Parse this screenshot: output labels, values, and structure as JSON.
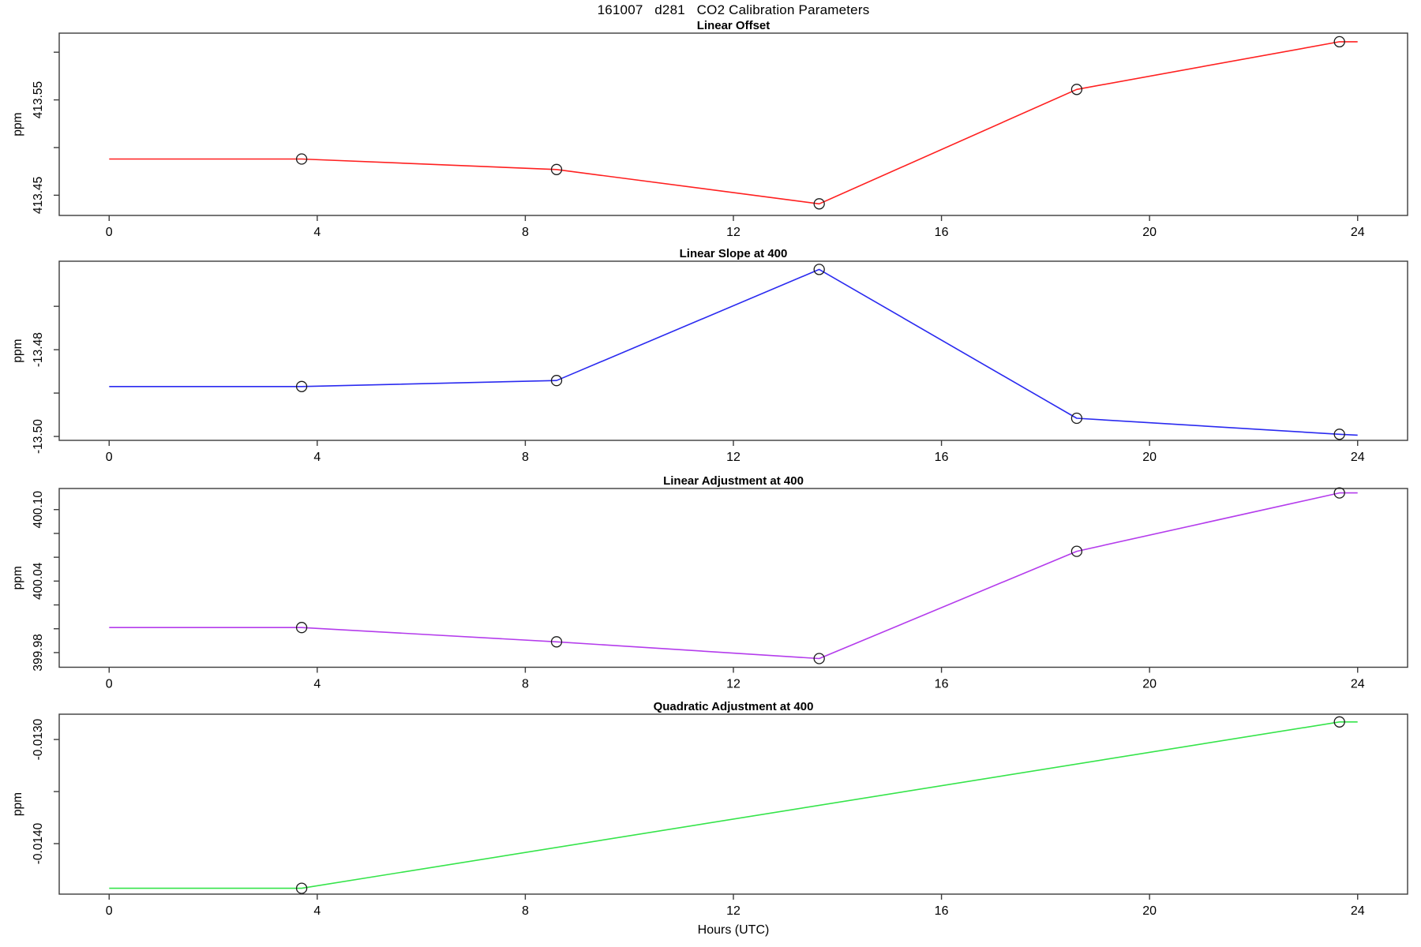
{
  "main_title": "161007   d281   CO2 Calibration Parameters",
  "x_axis": {
    "label": "Hours (UTC)",
    "ticks": [
      0,
      4,
      8,
      12,
      16,
      20,
      24
    ],
    "xlim": [
      -0.96,
      24.96
    ]
  },
  "chart_data": [
    {
      "type": "line",
      "title": "Linear Offset",
      "ylabel": "ppm",
      "color": "#ff2020",
      "ylim": [
        413.4288,
        413.62
      ],
      "yticks": [
        {
          "v": 413.45,
          "label": "413.45"
        },
        {
          "v": 413.5,
          "label": null
        },
        {
          "v": 413.55,
          "label": "413.55"
        },
        {
          "v": 413.6,
          "label": null
        }
      ],
      "x": [
        0,
        3.7,
        8.6,
        13.65,
        18.6,
        23.65,
        24
      ],
      "y": [
        413.488,
        413.488,
        413.477,
        413.441,
        413.561,
        413.611,
        413.611
      ],
      "marker_x": [
        3.7,
        8.6,
        13.65,
        18.6,
        23.65
      ],
      "marker_y": [
        413.488,
        413.477,
        413.441,
        413.561,
        413.611
      ]
    },
    {
      "type": "line",
      "title": "Linear Slope at 400",
      "ylabel": "ppm",
      "color": "#2a2af0",
      "ylim": [
        -13.5009,
        -13.4596
      ],
      "yticks": [
        {
          "v": -13.5,
          "label": "-13.50"
        },
        {
          "v": -13.49,
          "label": null
        },
        {
          "v": -13.48,
          "label": "-13.48"
        },
        {
          "v": -13.47,
          "label": null
        }
      ],
      "x": [
        0,
        3.7,
        8.6,
        13.65,
        18.6,
        23.65,
        24
      ],
      "y": [
        -13.4885,
        -13.4885,
        -13.4871,
        -13.4615,
        -13.4958,
        -13.4995,
        -13.4997
      ],
      "marker_x": [
        3.7,
        8.6,
        13.65,
        18.6,
        23.65
      ],
      "marker_y": [
        -13.4885,
        -13.4871,
        -13.4615,
        -13.4958,
        -13.4995
      ]
    },
    {
      "type": "line",
      "title": "Linear Adjustment at 400",
      "ylabel": "ppm",
      "color": "#b43cec",
      "ylim": [
        399.9677,
        400.1177
      ],
      "yticks": [
        {
          "v": 399.98,
          "label": "399.98"
        },
        {
          "v": 400.0,
          "label": null
        },
        {
          "v": 400.02,
          "label": null
        },
        {
          "v": 400.04,
          "label": "400.04"
        },
        {
          "v": 400.06,
          "label": null
        },
        {
          "v": 400.08,
          "label": null
        },
        {
          "v": 400.1,
          "label": "400.10"
        }
      ],
      "x": [
        0,
        3.7,
        8.6,
        13.65,
        18.6,
        23.65,
        24
      ],
      "y": [
        400.001,
        400.001,
        399.989,
        399.975,
        400.065,
        400.114,
        400.114
      ],
      "marker_x": [
        3.7,
        8.6,
        13.65,
        18.6,
        23.65
      ],
      "marker_y": [
        400.001,
        399.989,
        399.975,
        400.065,
        400.114
      ]
    },
    {
      "type": "line",
      "title": "Quadratic Adjustment at 400",
      "ylabel": "ppm",
      "color": "#35e44a",
      "ylim": [
        -0.014485,
        -0.012757
      ],
      "yticks": [
        {
          "v": -0.014,
          "label": "-0.0140"
        },
        {
          "v": -0.0135,
          "label": null
        },
        {
          "v": -0.013,
          "label": "-0.0130"
        }
      ],
      "x": [
        0,
        3.7,
        23.65,
        24
      ],
      "y": [
        -0.014429,
        -0.014429,
        -0.012831,
        -0.012831
      ],
      "marker_x": [
        3.7,
        23.65
      ],
      "marker_y": [
        -0.014429,
        -0.012831
      ]
    }
  ]
}
